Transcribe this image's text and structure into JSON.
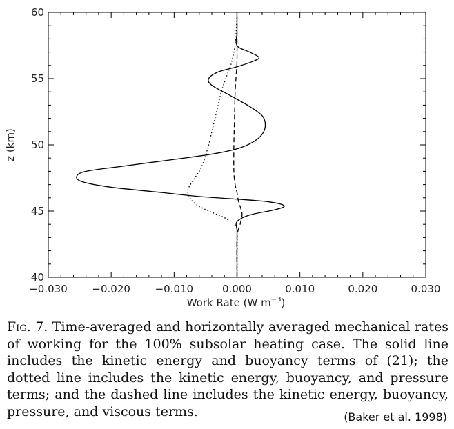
{
  "chart_data": {
    "type": "line",
    "title": "",
    "xlabel": "Work Rate (W m",
    "xlabel_exponent": "−3",
    "xlabel_close": ")",
    "ylabel": "z (km)",
    "xlim": [
      -0.03,
      0.03
    ],
    "ylim": [
      40,
      60
    ],
    "xticks": [
      -0.03,
      -0.02,
      -0.01,
      0.0,
      0.01,
      0.02,
      0.03
    ],
    "xtick_labels": [
      "−0.030",
      "−0.020",
      "−0.010",
      "0.000",
      "0.010",
      "0.020",
      "0.030"
    ],
    "yticks": [
      40,
      45,
      50,
      55,
      60
    ],
    "ytick_labels": [
      "40",
      "45",
      "50",
      "55",
      "60"
    ],
    "grid": false,
    "series": [
      {
        "style": "solid",
        "points": [
          [
            0.0,
            40
          ],
          [
            0.0,
            42
          ],
          [
            0.0,
            43.5
          ],
          [
            0.0,
            44.2
          ],
          [
            0.002,
            44.7
          ],
          [
            0.006,
            45.1
          ],
          [
            0.0075,
            45.4
          ],
          [
            0.005,
            45.7
          ],
          [
            0.0,
            45.9
          ],
          [
            -0.006,
            46.1
          ],
          [
            -0.012,
            46.4
          ],
          [
            -0.02,
            46.8
          ],
          [
            -0.0245,
            47.2
          ],
          [
            -0.0255,
            47.6
          ],
          [
            -0.024,
            48.0
          ],
          [
            -0.018,
            48.4
          ],
          [
            -0.01,
            48.9
          ],
          [
            -0.004,
            49.3
          ],
          [
            0.0,
            49.7
          ],
          [
            0.0025,
            50.2
          ],
          [
            0.004,
            50.8
          ],
          [
            0.0045,
            51.5
          ],
          [
            0.004,
            52.2
          ],
          [
            0.002,
            52.9
          ],
          [
            -0.001,
            53.7
          ],
          [
            -0.004,
            54.5
          ],
          [
            -0.0045,
            55.0
          ],
          [
            -0.003,
            55.5
          ],
          [
            0.0,
            55.9
          ],
          [
            0.0025,
            56.3
          ],
          [
            0.0035,
            56.6
          ],
          [
            0.002,
            57.0
          ],
          [
            0.0,
            57.5
          ],
          [
            0.0,
            58.5
          ],
          [
            0.0,
            60
          ]
        ]
      },
      {
        "style": "dotted",
        "points": [
          [
            0.0,
            40
          ],
          [
            0.0,
            43.5
          ],
          [
            -0.0005,
            44.0
          ],
          [
            -0.002,
            44.5
          ],
          [
            -0.0045,
            45.0
          ],
          [
            -0.0065,
            45.5
          ],
          [
            -0.0075,
            46.0
          ],
          [
            -0.0078,
            46.6
          ],
          [
            -0.007,
            47.3
          ],
          [
            -0.006,
            48.0
          ],
          [
            -0.0055,
            48.5
          ],
          [
            -0.005,
            49.2
          ],
          [
            -0.0045,
            50.0
          ],
          [
            -0.004,
            51.0
          ],
          [
            -0.0035,
            52.0
          ],
          [
            -0.003,
            53.0
          ],
          [
            -0.0025,
            54.0
          ],
          [
            -0.0018,
            55.0
          ],
          [
            -0.001,
            56.0
          ],
          [
            -0.0005,
            57.0
          ],
          [
            -0.0002,
            58.0
          ],
          [
            0.0,
            60
          ]
        ]
      },
      {
        "style": "dashed",
        "points": [
          [
            0.0,
            40
          ],
          [
            0.0,
            43.0
          ],
          [
            0.0005,
            44.0
          ],
          [
            0.0008,
            44.7
          ],
          [
            0.0006,
            45.2
          ],
          [
            0.0002,
            45.8
          ],
          [
            0.0,
            46.4
          ],
          [
            -0.0003,
            47.0
          ],
          [
            -0.0005,
            48.0
          ],
          [
            -0.0005,
            50.0
          ],
          [
            -0.0004,
            52.0
          ],
          [
            -0.0003,
            54.0
          ],
          [
            -0.0001,
            55.5
          ],
          [
            0.0,
            56.5
          ],
          [
            0.0,
            60
          ]
        ]
      }
    ]
  },
  "caption": {
    "fig_num": "Fig. 7.",
    "text": "Time-averaged and horizontally averaged mechanical rates of working for the 100% subsolar heating case. The solid line includes the kinetic energy and buoyancy terms of (21); the dotted line includes the kinetic energy, buoyancy, and pressure terms; and the dashed line includes the kinetic energy, buoyancy, pressure, and viscous terms."
  },
  "credit": "(Baker et al. 1998)"
}
